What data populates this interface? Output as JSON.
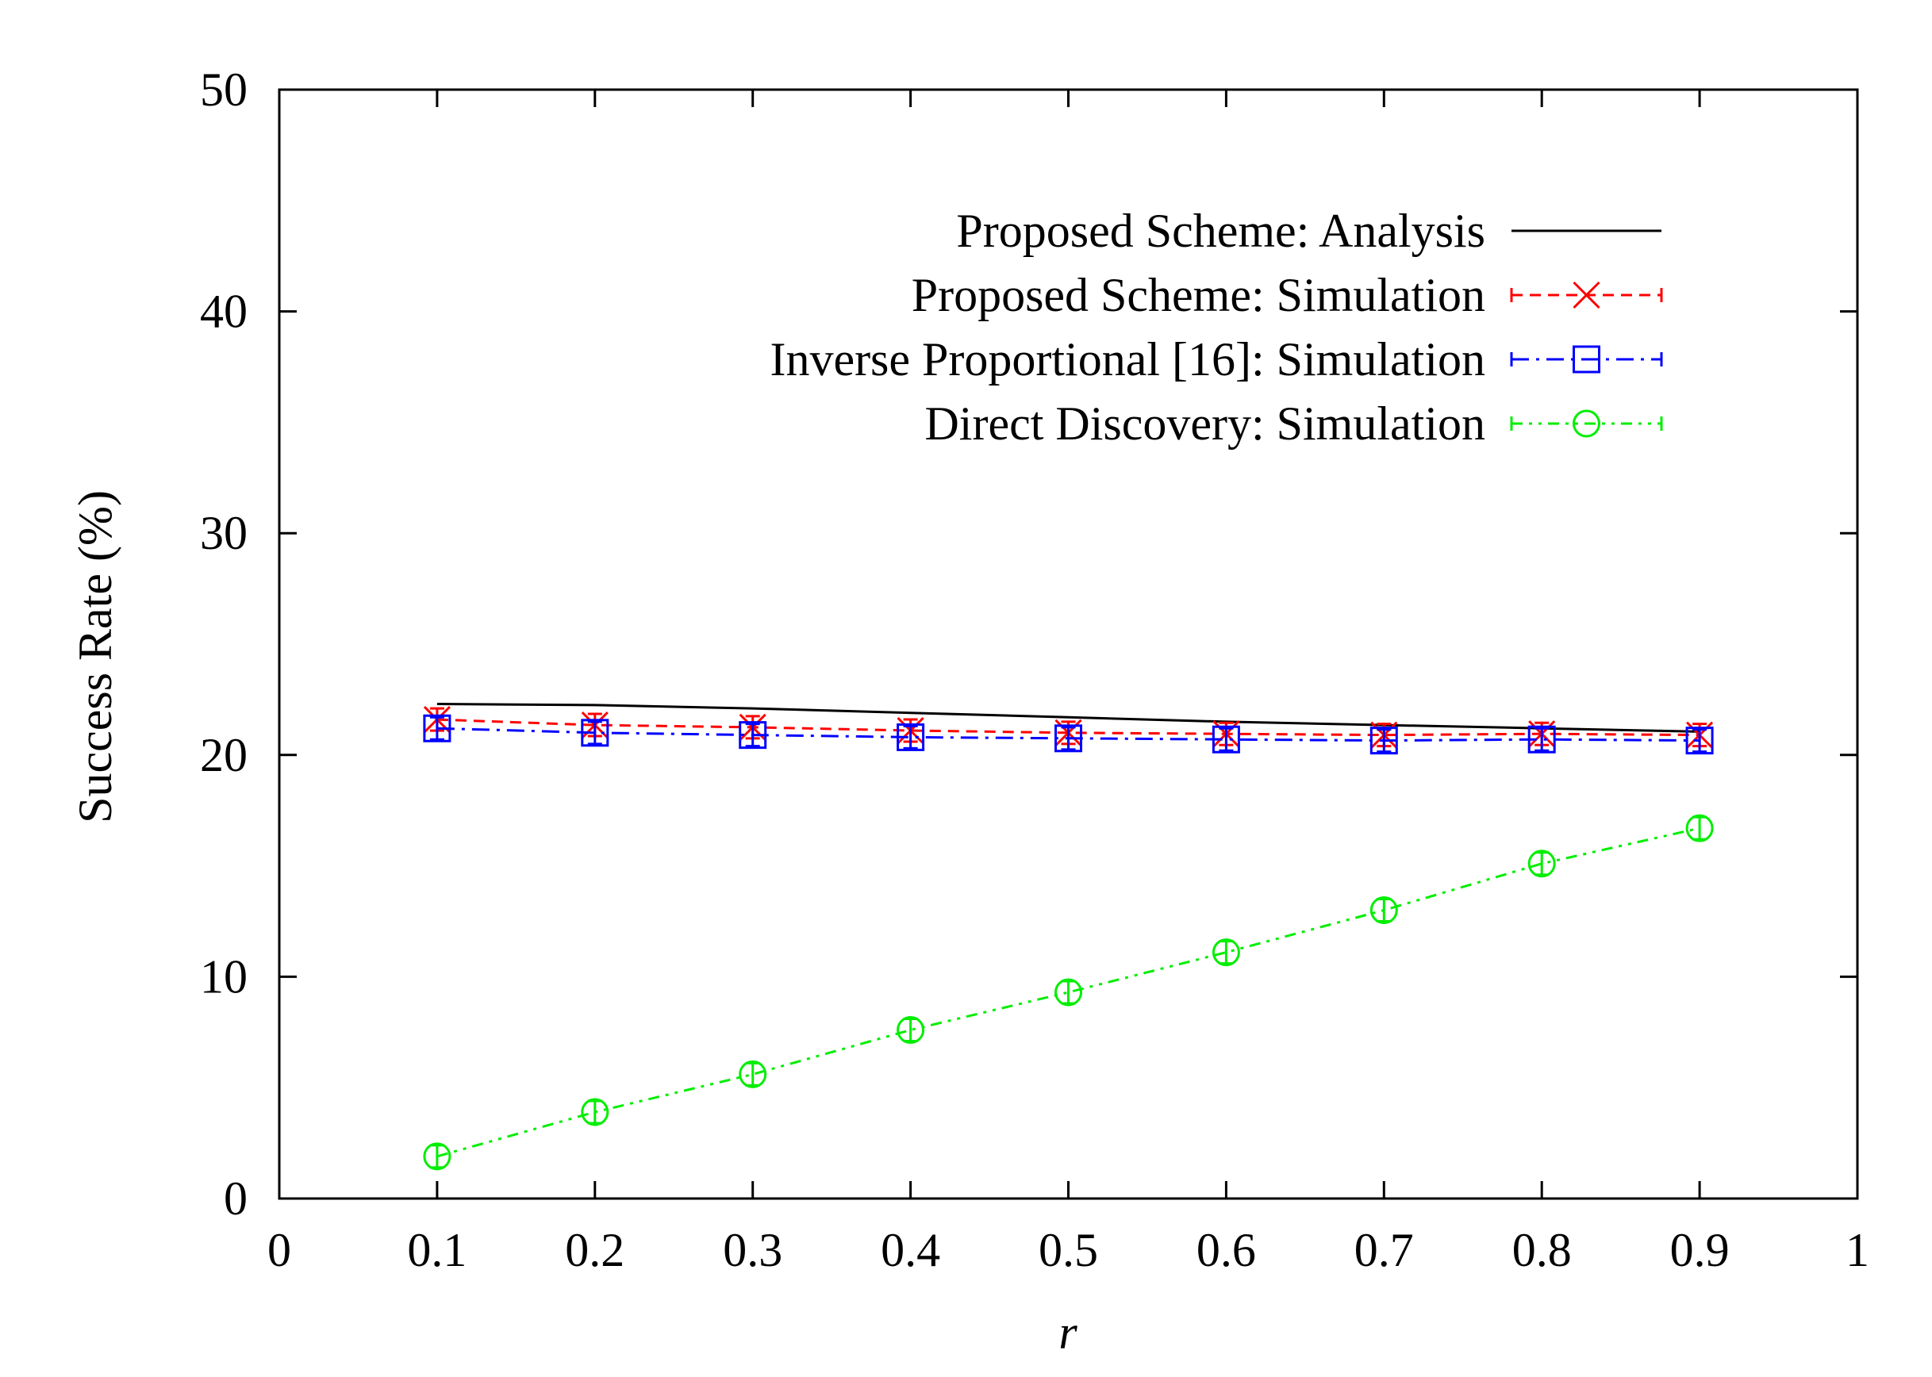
{
  "chart_data": {
    "type": "line",
    "title": "",
    "xlabel": "r",
    "ylabel": "Success Rate (%)",
    "xlim": [
      0,
      1
    ],
    "ylim": [
      0,
      50
    ],
    "xticks": [
      "0",
      "0.1",
      "0.2",
      "0.3",
      "0.4",
      "0.5",
      "0.6",
      "0.7",
      "0.8",
      "0.9",
      "1"
    ],
    "yticks": [
      "0",
      "10",
      "20",
      "30",
      "40",
      "50"
    ],
    "grid": false,
    "legend_position": "top-right",
    "x": [
      0.1,
      0.2,
      0.3,
      0.4,
      0.5,
      0.6,
      0.7,
      0.8,
      0.9
    ],
    "series": [
      {
        "name": "Proposed Scheme: Analysis",
        "color": "#000000",
        "dash": "solid",
        "marker": "none",
        "values": [
          22.3,
          22.25,
          22.1,
          21.9,
          21.7,
          21.5,
          21.35,
          21.2,
          21.05
        ]
      },
      {
        "name": "Proposed Scheme: Simulation",
        "color": "#ff0000",
        "dash": "dashed",
        "marker": "cross",
        "values": [
          21.6,
          21.35,
          21.25,
          21.1,
          21.0,
          20.95,
          20.9,
          20.95,
          20.9
        ]
      },
      {
        "name": "Inverse Proportional [16]: Simulation",
        "color": "#0000ff",
        "dash": "dash-dot",
        "marker": "square",
        "values": [
          21.2,
          21.0,
          20.9,
          20.8,
          20.75,
          20.7,
          20.65,
          20.7,
          20.65
        ]
      },
      {
        "name": "Direct Discovery: Simulation",
        "color": "#00ee00",
        "dash": "dash-dot-dot",
        "marker": "circle",
        "values": [
          1.9,
          3.9,
          5.6,
          7.6,
          9.3,
          11.1,
          13.0,
          15.1,
          16.7
        ]
      }
    ]
  }
}
